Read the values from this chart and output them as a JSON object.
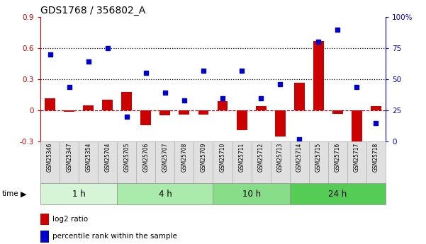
{
  "title": "GDS1768 / 356802_A",
  "samples": [
    "GSM25346",
    "GSM25347",
    "GSM25354",
    "GSM25704",
    "GSM25705",
    "GSM25706",
    "GSM25707",
    "GSM25708",
    "GSM25709",
    "GSM25710",
    "GSM25711",
    "GSM25712",
    "GSM25713",
    "GSM25714",
    "GSM25715",
    "GSM25716",
    "GSM25717",
    "GSM25718"
  ],
  "log2": [
    0.12,
    -0.01,
    0.05,
    0.1,
    0.18,
    -0.14,
    -0.05,
    -0.04,
    -0.04,
    0.09,
    -0.19,
    0.04,
    -0.25,
    0.27,
    0.67,
    -0.03,
    -0.31,
    0.04
  ],
  "pct": [
    70,
    44,
    64,
    75,
    20,
    55,
    39,
    33,
    57,
    35,
    57,
    35,
    46,
    2,
    80,
    90,
    44,
    15
  ],
  "bar_color": "#cc0000",
  "dot_color": "#0000cc",
  "ylim_left": [
    -0.3,
    0.9
  ],
  "ylim_right": [
    0,
    100
  ],
  "yticks_left": [
    -0.3,
    0.0,
    0.3,
    0.6,
    0.9
  ],
  "ytick_labels_left": [
    "-0.3",
    "0",
    "0.3",
    "0.6",
    "0.9"
  ],
  "yticks_right": [
    0,
    25,
    50,
    75,
    100
  ],
  "ytick_labels_right": [
    "0",
    "25",
    "50",
    "75",
    "100%"
  ],
  "hlines": [
    0.3,
    0.6
  ],
  "group_labels": [
    "1 h",
    "4 h",
    "10 h",
    "24 h"
  ],
  "group_ranges": [
    [
      0,
      3
    ],
    [
      4,
      8
    ],
    [
      9,
      12
    ],
    [
      13,
      17
    ]
  ],
  "group_colors": [
    "#d6f5d6",
    "#aaeaaa",
    "#88dd88",
    "#55cc55"
  ]
}
